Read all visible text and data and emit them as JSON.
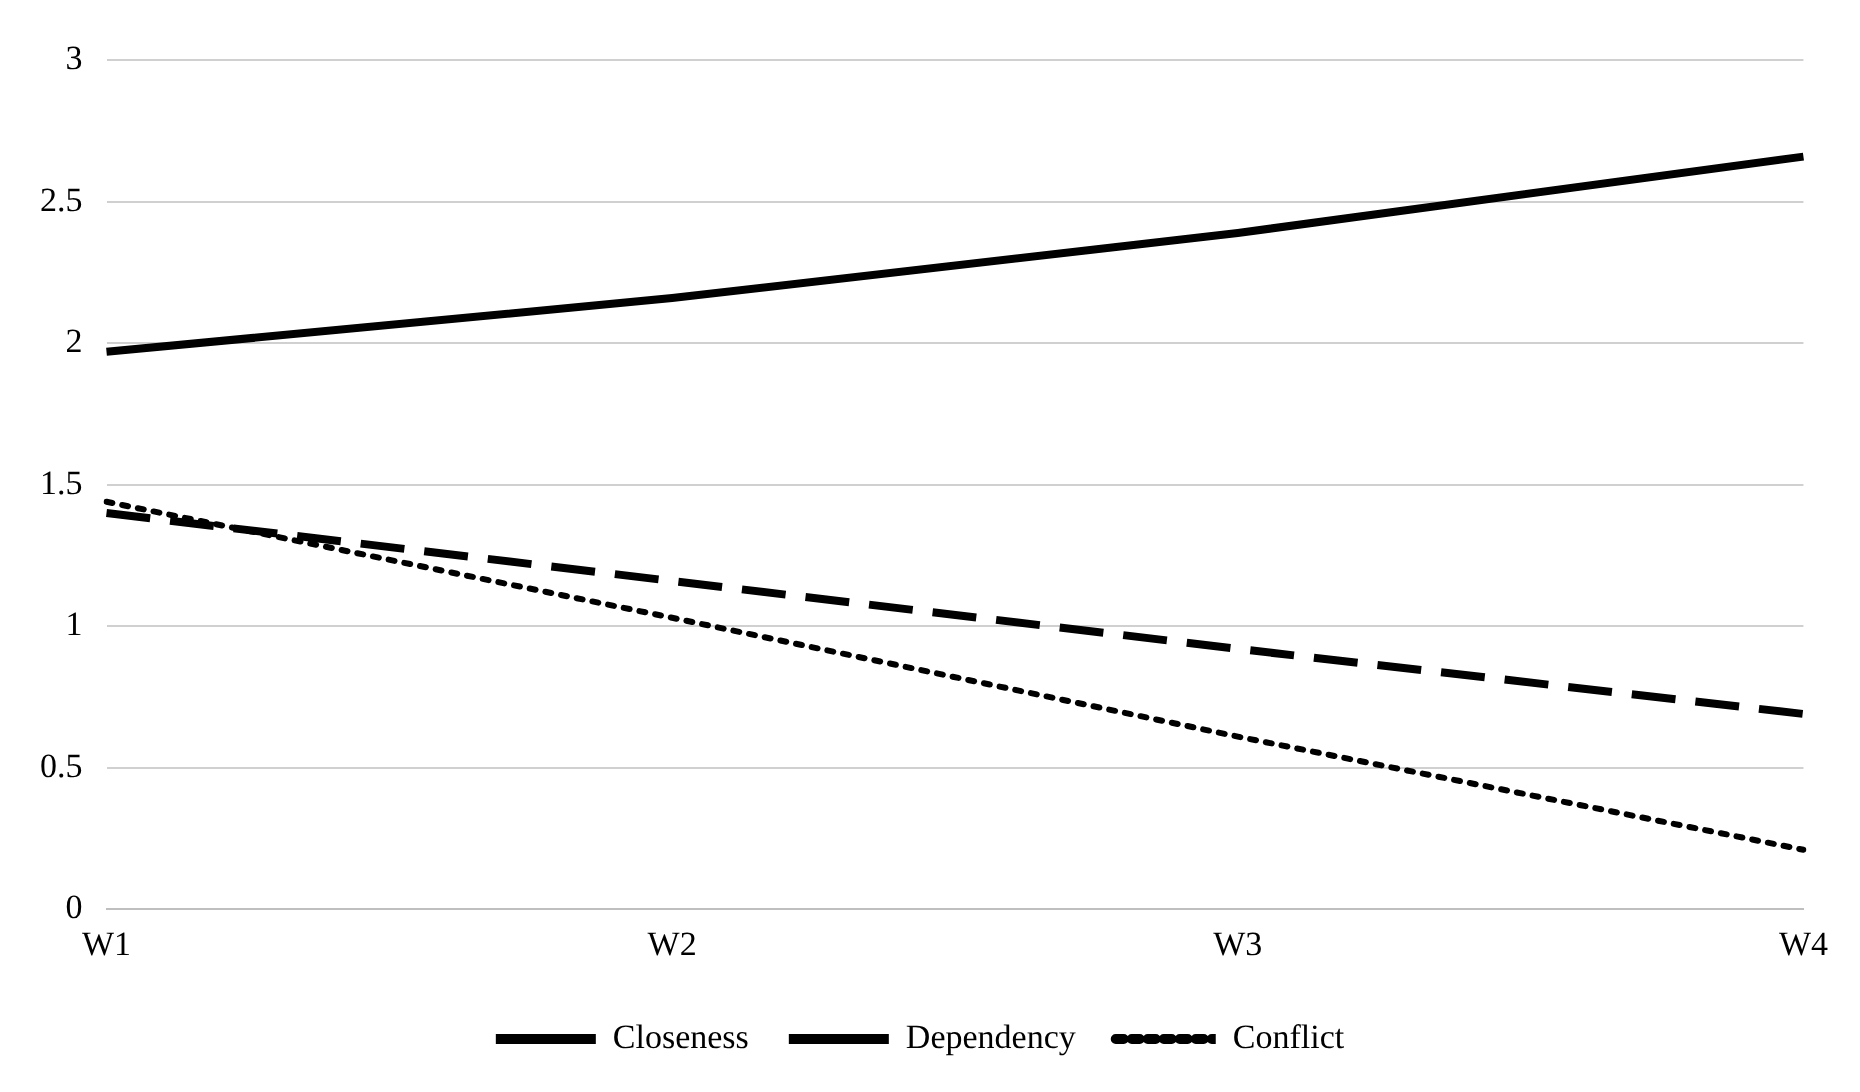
{
  "chart_data": {
    "type": "line",
    "categories": [
      "W1",
      "W2",
      "W3",
      "W4"
    ],
    "series": [
      {
        "name": "Closeness",
        "color": "#000000",
        "values": [
          1.97,
          2.16,
          2.39,
          2.66
        ],
        "line_style": "solid"
      },
      {
        "name": "Dependency",
        "color": "#000000",
        "values": [
          1.4,
          1.16,
          0.92,
          0.69
        ],
        "line_style": "dashed"
      },
      {
        "name": "Conflict",
        "color": "#000000",
        "values": [
          1.44,
          1.03,
          0.61,
          0.21
        ],
        "line_style": "dotted"
      }
    ],
    "ylim": [
      0,
      3
    ],
    "yticks": [
      0,
      0.5,
      1,
      1.5,
      2,
      2.5,
      3
    ],
    "grid": "y",
    "legend": "bottom",
    "marker": "none"
  }
}
